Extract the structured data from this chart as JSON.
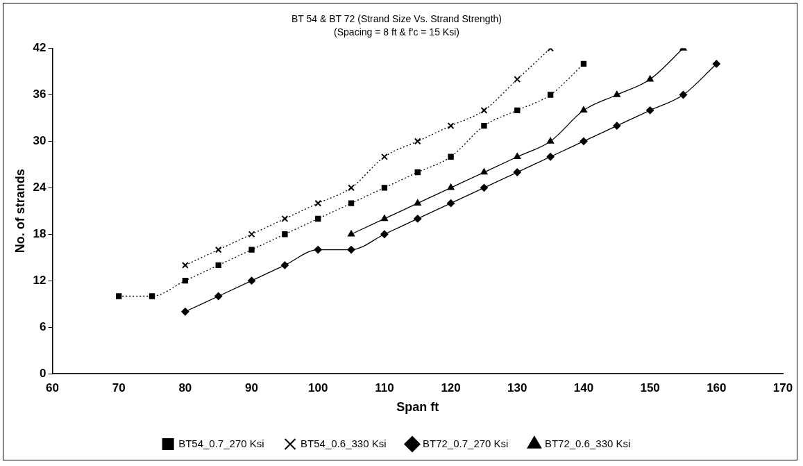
{
  "chart_data": {
    "type": "line",
    "title": "BT 54 & BT 72 (Strand Size Vs. Strand Strength)",
    "subtitle": "(Spacing = 8 ft & f'c = 15 Ksi)",
    "xlabel": "Span ft",
    "ylabel": "No. of strands",
    "xlim": [
      60,
      170
    ],
    "xticks": [
      60,
      70,
      80,
      90,
      100,
      110,
      120,
      130,
      140,
      150,
      160,
      170
    ],
    "ylim": [
      0,
      42
    ],
    "yticks": [
      0,
      6,
      12,
      18,
      24,
      30,
      36,
      42
    ],
    "grid": false,
    "legend": "bottom",
    "series": [
      {
        "name": "BT54_0.7_270 Ksi",
        "color": "#000000",
        "marker": "square",
        "line_style": "dotted",
        "x": [
          70,
          75,
          80,
          85,
          90,
          95,
          100,
          105,
          110,
          115,
          120,
          125,
          130,
          135,
          140
        ],
        "values": [
          10,
          10,
          12,
          14,
          16,
          18,
          20,
          22,
          24,
          26,
          28,
          32,
          34,
          36,
          40
        ]
      },
      {
        "name": "BT54_0.6_330 Ksi",
        "color": "#000000",
        "marker": "cross",
        "line_style": "dotted",
        "x": [
          80,
          85,
          90,
          95,
          100,
          105,
          110,
          115,
          120,
          125,
          130,
          135
        ],
        "values": [
          14,
          16,
          18,
          20,
          22,
          24,
          28,
          30,
          32,
          34,
          38,
          42
        ]
      },
      {
        "name": "BT72_0.7_270 Ksi",
        "color": "#000000",
        "marker": "diamond",
        "line_style": "solid",
        "x": [
          80,
          85,
          90,
          95,
          100,
          105,
          110,
          115,
          120,
          125,
          130,
          135,
          140,
          145,
          150,
          155,
          160
        ],
        "values": [
          8,
          10,
          12,
          14,
          16,
          16,
          18,
          20,
          22,
          24,
          26,
          28,
          30,
          32,
          34,
          36,
          40
        ]
      },
      {
        "name": "BT72_0.6_330 Ksi",
        "color": "#000000",
        "marker": "triangle",
        "line_style": "solid",
        "x": [
          105,
          110,
          115,
          120,
          125,
          130,
          135,
          140,
          145,
          150,
          155
        ],
        "values": [
          18,
          20,
          22,
          24,
          26,
          28,
          30,
          34,
          36,
          38,
          42
        ]
      }
    ]
  }
}
